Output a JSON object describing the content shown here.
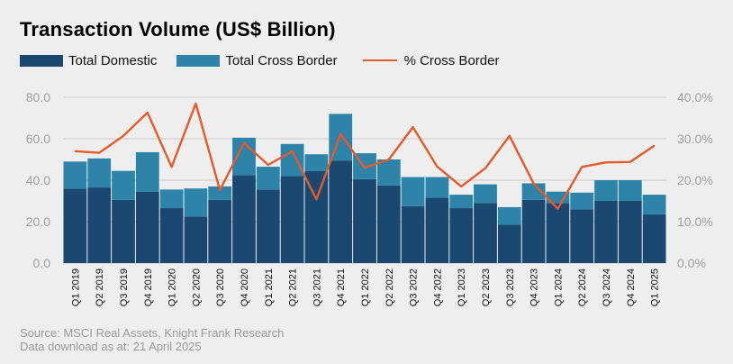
{
  "title": "Transaction Volume (US$ Billion)",
  "legend": {
    "domestic": "Total Domestic",
    "cross_border": "Total Cross Border",
    "pct": "% Cross Border"
  },
  "source": {
    "line1": "Source: MSCI Real Assets, Knight Frank Research",
    "line2": "Data download as at: 21 April 2025"
  },
  "colors": {
    "domestic": "#1b4870",
    "cross_border": "#2d84a8",
    "pct_line": "#e55a2b",
    "grid": "#c9c9c9",
    "axis_text": "#a0a0a0"
  },
  "chart_data": {
    "type": "bar",
    "stacked": true,
    "categories": [
      "Q1 2019",
      "Q2 2019",
      "Q3 2019",
      "Q4 2019",
      "Q1 2020",
      "Q2 2020",
      "Q3 2020",
      "Q4 2020",
      "Q1 2021",
      "Q2 2021",
      "Q3 2021",
      "Q4 2021",
      "Q1 2022",
      "Q2 2022",
      "Q3 2022",
      "Q4 2022",
      "Q1 2023",
      "Q2 2023",
      "Q3 2023",
      "Q4 2023",
      "Q1 2024",
      "Q2 2024",
      "Q3 2024",
      "Q4 2024",
      "Q1 2025"
    ],
    "series": [
      {
        "name": "Total Domestic",
        "axis": "left",
        "values": [
          36,
          36.5,
          30.5,
          34.5,
          26.5,
          22.5,
          30.5,
          42.5,
          35.5,
          42,
          44.5,
          49.5,
          40.5,
          37.5,
          27.5,
          31.5,
          26.5,
          29,
          18.5,
          30.5,
          29,
          26,
          30,
          30,
          23.5
        ]
      },
      {
        "name": "Total Cross Border",
        "axis": "left",
        "values": [
          13,
          14,
          14,
          19,
          9,
          13.5,
          6.5,
          18,
          11,
          15.5,
          8,
          22.5,
          12.5,
          12.5,
          14,
          10,
          6.5,
          9,
          8.5,
          8,
          5.5,
          8,
          10,
          10,
          9.5
        ]
      },
      {
        "name": "% Cross Border",
        "axis": "right",
        "type": "line",
        "values": [
          27,
          26.6,
          30.7,
          36.3,
          23.2,
          38.5,
          17.6,
          29,
          23.7,
          27,
          15.4,
          31.1,
          23,
          25,
          32.8,
          23.3,
          18.5,
          22.9,
          30.7,
          19.2,
          13.1,
          23.2,
          24.3,
          24.4,
          28.3
        ]
      }
    ],
    "yleft": {
      "ylim": [
        0,
        80
      ],
      "ticks": [
        "0.0",
        "20.0",
        "40.0",
        "60.0",
        "80.0"
      ]
    },
    "yright": {
      "ylim": [
        0,
        40
      ],
      "ticks": [
        "0.0%",
        "10.0%",
        "20.0%",
        "30.0%",
        "40.0%"
      ]
    },
    "grid": true,
    "legend_position": "top-left"
  }
}
